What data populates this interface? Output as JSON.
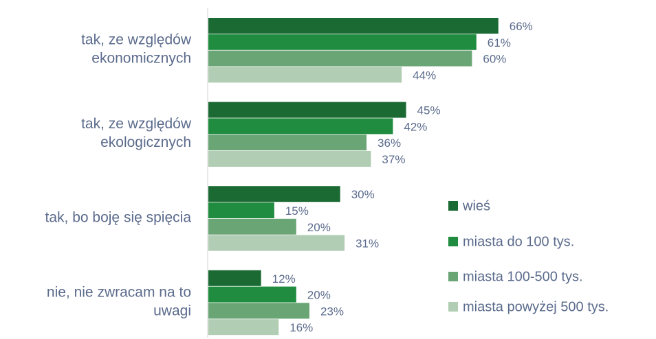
{
  "chart_data": {
    "type": "bar",
    "orientation": "horizontal",
    "categories": [
      [
        "tak, ze względów",
        "ekonomicznych"
      ],
      [
        "tak, ze względów",
        "ekologicznych"
      ],
      [
        "tak, bo boję się spięcia"
      ],
      [
        "nie, nie zwracam na to",
        "uwagi"
      ]
    ],
    "series": [
      {
        "name": "wieś",
        "color": "#1b6a33",
        "values": [
          66,
          45,
          30,
          12
        ],
        "value_labels": [
          "66%",
          "45%",
          "30%",
          "12%"
        ]
      },
      {
        "name": "miasta do 100 tys.",
        "color": "#1f8c3f",
        "values": [
          61,
          42,
          15,
          20
        ],
        "value_labels": [
          "61%",
          "42%",
          "15%",
          "20%"
        ]
      },
      {
        "name": "miasta 100-500 tys.",
        "color": "#6aa575",
        "values": [
          60,
          36,
          20,
          23
        ],
        "value_labels": [
          "60%",
          "36%",
          "20%",
          "23%"
        ]
      },
      {
        "name": "miasta powyżej 500 tys.",
        "color": "#b1cdb3",
        "values": [
          44,
          37,
          31,
          16
        ],
        "value_labels": [
          "44%",
          "37%",
          "31%",
          "16%"
        ]
      }
    ],
    "legend": "right"
  }
}
